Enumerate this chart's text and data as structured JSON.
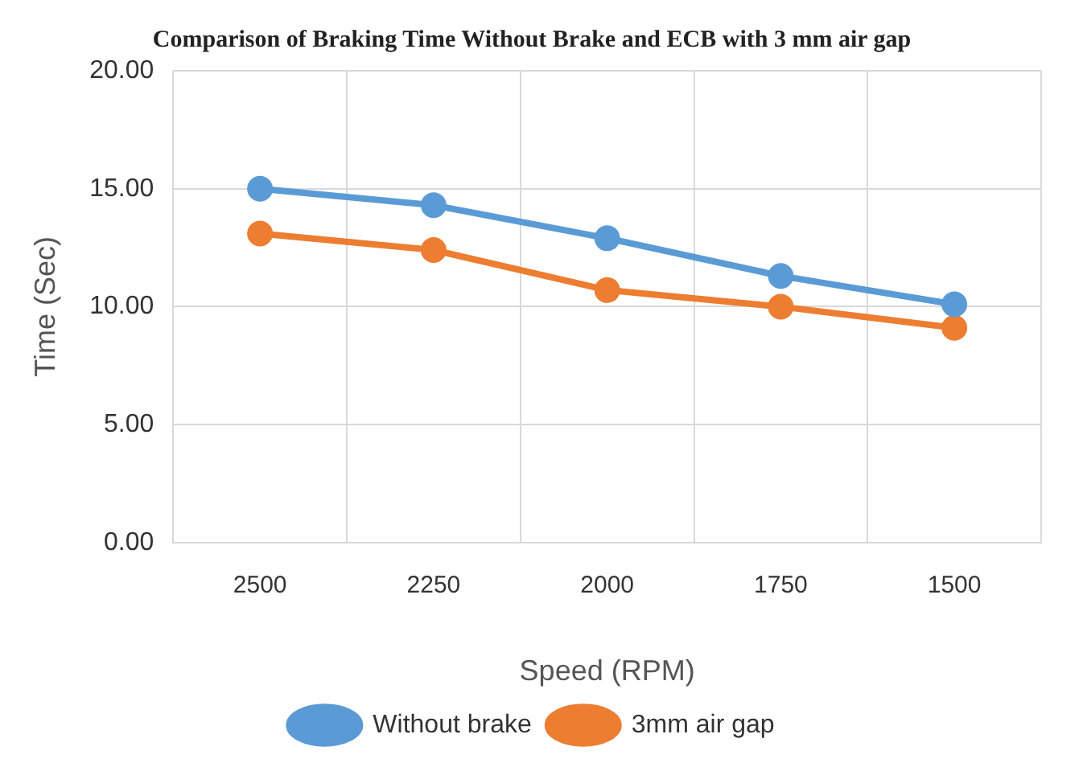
{
  "chart_data": {
    "type": "line",
    "title": "Comparison of Braking Time Without Brake and ECB with 3 mm air gap",
    "xlabel": "Speed (RPM)",
    "ylabel": "Time (Sec)",
    "categories": [
      "2500",
      "2250",
      "2000",
      "1750",
      "1500"
    ],
    "series": [
      {
        "name": "Without brake",
        "color": "#5b9bd5",
        "values": [
          15.0,
          14.3,
          12.9,
          11.3,
          10.1
        ]
      },
      {
        "name": "3mm air gap",
        "color": "#ed7d31",
        "values": [
          13.1,
          12.4,
          10.7,
          10.0,
          9.1
        ]
      }
    ],
    "ylim": [
      0,
      20
    ],
    "yticks": [
      {
        "value": 0,
        "label": "0.00"
      },
      {
        "value": 5,
        "label": "5.00"
      },
      {
        "value": 10,
        "label": "10.00"
      },
      {
        "value": 15,
        "label": "15.00"
      },
      {
        "value": 20,
        "label": "20.00"
      }
    ],
    "grid": true,
    "legend": "bottom",
    "marker": "circle",
    "line_style": "solid"
  }
}
